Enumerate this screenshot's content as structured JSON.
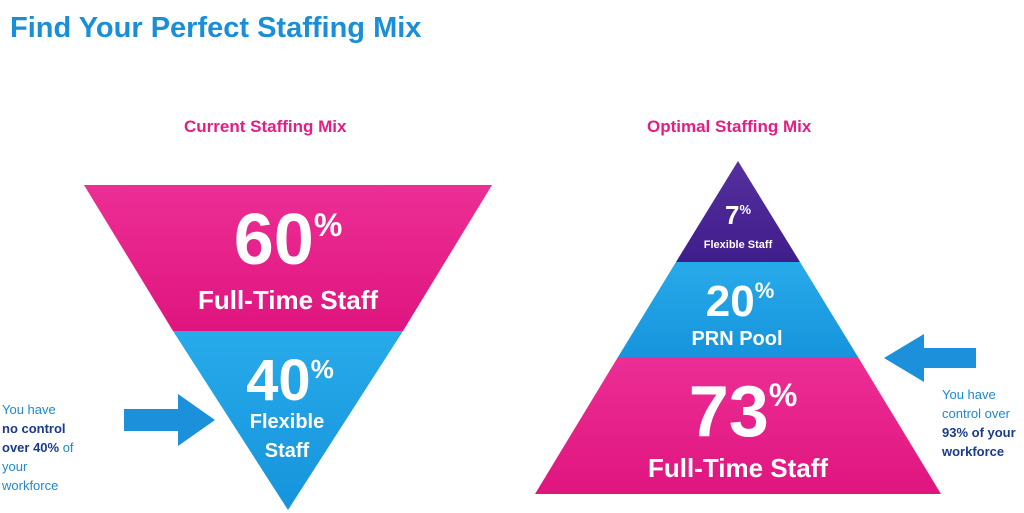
{
  "title": "Find Your Perfect Staffing Mix",
  "current": {
    "heading": "Current Staffing Mix",
    "segments": [
      {
        "value": "60",
        "unit": "%",
        "label": "Full-Time Staff"
      },
      {
        "value": "40",
        "unit": "%",
        "label_line1": "Flexible",
        "label_line2": "Staff"
      }
    ],
    "note": {
      "line1": "You have",
      "bold1": "no control",
      "bold2": "over 40%",
      "line3_rest": " of",
      "line4": "your",
      "line5": "workforce"
    }
  },
  "optimal": {
    "heading": "Optimal Staffing Mix",
    "segments": [
      {
        "value": "7",
        "unit": "%",
        "label": "Flexible Staff"
      },
      {
        "value": "20",
        "unit": "%",
        "label": "PRN Pool"
      },
      {
        "value": "73",
        "unit": "%",
        "label": "Full-Time Staff"
      }
    ],
    "note": {
      "line1": "You have",
      "line2": "control over",
      "bold1": "93% of your",
      "bold2": "workforce"
    }
  },
  "colors": {
    "pink": "#e91e8c",
    "blue": "#1ea3e6",
    "purple": "#4a2596",
    "arrow": "#1d90dc",
    "title": "#1a8fd8",
    "heading": "#e41e84"
  }
}
